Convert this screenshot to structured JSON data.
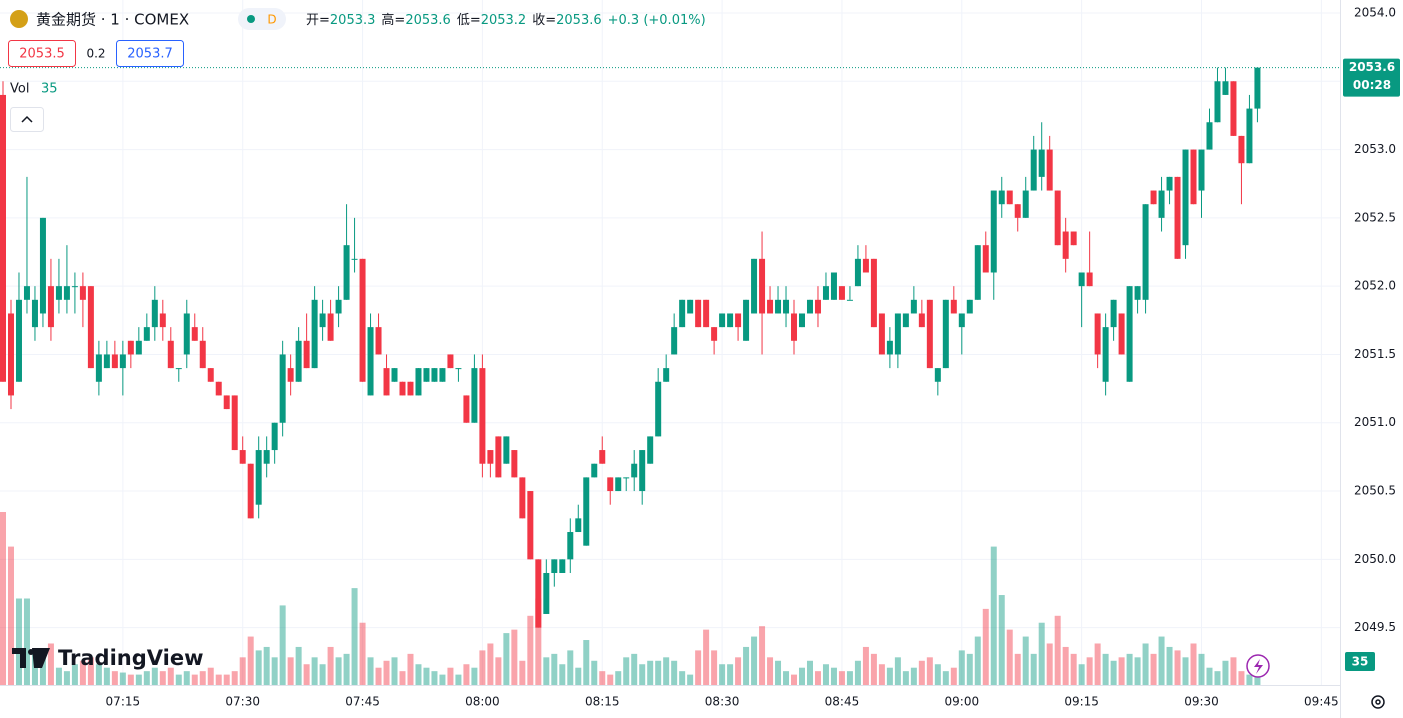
{
  "chart_data": {
    "type": "candlestick",
    "title": "黄金期货 · 1 · COMEX",
    "interval_badge": "D",
    "legend_labels": [
      "开=",
      "高=",
      "低=",
      "收="
    ],
    "change_text": "+0.3 (+0.01%)",
    "bid": 2053.5,
    "spread": 0.2,
    "ask": 2053.7,
    "volume_label": "Vol",
    "countdown": "00:28",
    "watermark": "TradingView",
    "up_color": "#089981",
    "down_color": "#f23645",
    "grid": true,
    "ylim": [
      2049.08,
      2054.095
    ],
    "yticks": [
      2049.5,
      {
        "value": 2050.0,
        "label": "2050.0"
      },
      2050.5,
      {
        "value": 2051.0,
        "label": "2051.0"
      },
      2051.5,
      {
        "value": 2052.0,
        "label": "2052.0"
      },
      2052.5,
      {
        "value": 2053.0,
        "label": "2053.0"
      },
      2053.5,
      {
        "value": 2054.0,
        "label": "2054.0"
      }
    ],
    "xticks": [
      "07:15",
      "07:30",
      "07:45",
      "08:00",
      "08:15",
      "08:30",
      "08:45",
      "09:00",
      "09:15",
      "09:30",
      "09:45"
    ],
    "x": [
      "07:00",
      "07:01",
      "07:02",
      "07:03",
      "07:04",
      "07:05",
      "07:06",
      "07:07",
      "07:08",
      "07:09",
      "07:10",
      "07:11",
      "07:12",
      "07:13",
      "07:14",
      "07:15",
      "07:16",
      "07:17",
      "07:18",
      "07:19",
      "07:20",
      "07:21",
      "07:22",
      "07:23",
      "07:24",
      "07:25",
      "07:26",
      "07:27",
      "07:28",
      "07:29",
      "07:30",
      "07:31",
      "07:32",
      "07:33",
      "07:34",
      "07:35",
      "07:36",
      "07:37",
      "07:38",
      "07:39",
      "07:40",
      "07:41",
      "07:42",
      "07:43",
      "07:44",
      "07:45",
      "07:46",
      "07:47",
      "07:48",
      "07:49",
      "07:50",
      "07:51",
      "07:52",
      "07:53",
      "07:54",
      "07:55",
      "07:56",
      "07:57",
      "07:58",
      "07:59",
      "08:00",
      "08:01",
      "08:02",
      "08:03",
      "08:04",
      "08:05",
      "08:06",
      "08:07",
      "08:08",
      "08:09",
      "08:10",
      "08:11",
      "08:12",
      "08:13",
      "08:14",
      "08:15",
      "08:16",
      "08:17",
      "08:18",
      "08:19",
      "08:20",
      "08:21",
      "08:22",
      "08:23",
      "08:24",
      "08:25",
      "08:26",
      "08:27",
      "08:28",
      "08:29",
      "08:30",
      "08:31",
      "08:32",
      "08:33",
      "08:34",
      "08:35",
      "08:36",
      "08:37",
      "08:38",
      "08:39",
      "08:40",
      "08:41",
      "08:42",
      "08:43",
      "08:44",
      "08:45",
      "08:46",
      "08:47",
      "08:48",
      "08:49",
      "08:50",
      "08:51",
      "08:52",
      "08:53",
      "08:54",
      "08:55",
      "08:56",
      "08:57",
      "08:58",
      "08:59",
      "09:00",
      "09:01",
      "09:02",
      "09:03",
      "09:04",
      "09:05",
      "09:06",
      "09:07",
      "09:08",
      "09:09",
      "09:10",
      "09:11",
      "09:12",
      "09:13",
      "09:14",
      "09:15",
      "09:16",
      "09:17",
      "09:18",
      "09:19",
      "09:20",
      "09:21",
      "09:22",
      "09:23",
      "09:24",
      "09:25",
      "09:26",
      "09:27",
      "09:28",
      "09:29",
      "09:30",
      "09:31",
      "09:32",
      "09:33",
      "09:34",
      "09:35",
      "09:36",
      "09:37"
    ],
    "ohlc": [
      [
        2053.4,
        2053.5,
        2051.3,
        2051.3
      ],
      [
        2051.8,
        2051.9,
        2051.1,
        2051.2
      ],
      [
        2051.3,
        2052.1,
        2051.3,
        2051.9
      ],
      [
        2051.9,
        2052.8,
        2051.8,
        2052.0
      ],
      [
        2051.7,
        2052.0,
        2051.6,
        2051.9
      ],
      [
        2051.8,
        2052.5,
        2051.7,
        2052.5
      ],
      [
        2052.0,
        2052.2,
        2051.6,
        2051.7
      ],
      [
        2051.9,
        2052.2,
        2051.8,
        2052.0
      ],
      [
        2051.9,
        2052.3,
        2051.8,
        2052.0
      ],
      [
        2052.0,
        2052.1,
        2051.8,
        2052.0
      ],
      [
        2052.0,
        2052.1,
        2051.7,
        2051.9
      ],
      [
        2052.0,
        2052.0,
        2051.4,
        2051.4
      ],
      [
        2051.3,
        2051.6,
        2051.2,
        2051.5
      ],
      [
        2051.4,
        2051.6,
        2051.4,
        2051.5
      ],
      [
        2051.5,
        2051.6,
        2051.4,
        2051.4
      ],
      [
        2051.4,
        2051.6,
        2051.2,
        2051.5
      ],
      [
        2051.6,
        2051.6,
        2051.4,
        2051.5
      ],
      [
        2051.5,
        2051.7,
        2051.5,
        2051.6
      ],
      [
        2051.6,
        2051.8,
        2051.6,
        2051.7
      ],
      [
        2051.7,
        2052.0,
        2051.6,
        2051.9
      ],
      [
        2051.8,
        2051.9,
        2051.6,
        2051.7
      ],
      [
        2051.6,
        2051.7,
        2051.4,
        2051.4
      ],
      [
        2051.4,
        2051.4,
        2051.3,
        2051.4
      ],
      [
        2051.5,
        2051.9,
        2051.4,
        2051.8
      ],
      [
        2051.7,
        2051.8,
        2051.6,
        2051.6
      ],
      [
        2051.6,
        2051.7,
        2051.4,
        2051.4
      ],
      [
        2051.4,
        2051.4,
        2051.3,
        2051.3
      ],
      [
        2051.3,
        2051.3,
        2051.2,
        2051.2
      ],
      [
        2051.2,
        2051.2,
        2051.1,
        2051.1
      ],
      [
        2051.2,
        2051.2,
        2050.8,
        2050.8
      ],
      [
        2050.8,
        2050.9,
        2050.7,
        2050.7
      ],
      [
        2050.7,
        2050.7,
        2050.3,
        2050.3
      ],
      [
        2050.4,
        2050.9,
        2050.3,
        2050.8
      ],
      [
        2050.7,
        2050.9,
        2050.6,
        2050.8
      ],
      [
        2050.8,
        2051.0,
        2050.7,
        2051.0
      ],
      [
        2051.0,
        2051.6,
        2050.9,
        2051.5
      ],
      [
        2051.4,
        2051.5,
        2051.2,
        2051.3
      ],
      [
        2051.3,
        2051.7,
        2051.3,
        2051.6
      ],
      [
        2051.6,
        2051.8,
        2051.4,
        2051.4
      ],
      [
        2051.4,
        2052.0,
        2051.4,
        2051.9
      ],
      [
        2051.7,
        2051.9,
        2051.6,
        2051.8
      ],
      [
        2051.8,
        2051.9,
        2051.6,
        2051.6
      ],
      [
        2051.8,
        2052.0,
        2051.7,
        2051.9
      ],
      [
        2051.9,
        2052.6,
        2051.9,
        2052.3
      ],
      [
        2052.2,
        2052.5,
        2052.1,
        2052.2
      ],
      [
        2052.2,
        2052.2,
        2051.3,
        2051.3
      ],
      [
        2051.2,
        2051.8,
        2051.2,
        2051.7
      ],
      [
        2051.7,
        2051.8,
        2051.5,
        2051.5
      ],
      [
        2051.4,
        2051.5,
        2051.2,
        2051.2
      ],
      [
        2051.3,
        2051.4,
        2051.3,
        2051.4
      ],
      [
        2051.3,
        2051.3,
        2051.2,
        2051.2
      ],
      [
        2051.3,
        2051.3,
        2051.2,
        2051.2
      ],
      [
        2051.2,
        2051.4,
        2051.2,
        2051.4
      ],
      [
        2051.3,
        2051.4,
        2051.3,
        2051.4
      ],
      [
        2051.3,
        2051.4,
        2051.3,
        2051.4
      ],
      [
        2051.3,
        2051.4,
        2051.3,
        2051.4
      ],
      [
        2051.5,
        2051.5,
        2051.4,
        2051.4
      ],
      [
        2051.4,
        2051.4,
        2051.3,
        2051.4
      ],
      [
        2051.2,
        2051.2,
        2051.0,
        2051.0
      ],
      [
        2051.0,
        2051.5,
        2051.0,
        2051.4
      ],
      [
        2051.4,
        2051.5,
        2050.6,
        2050.7
      ],
      [
        2050.8,
        2050.8,
        2050.6,
        2050.7
      ],
      [
        2050.9,
        2050.9,
        2050.6,
        2050.6
      ],
      [
        2050.7,
        2050.9,
        2050.7,
        2050.9
      ],
      [
        2050.8,
        2050.8,
        2050.6,
        2050.6
      ],
      [
        2050.6,
        2050.6,
        2050.3,
        2050.3
      ],
      [
        2050.5,
        2050.5,
        2050.0,
        2050.0
      ],
      [
        2050.0,
        2050.0,
        2049.5,
        2049.5
      ],
      [
        2049.6,
        2050.0,
        2049.6,
        2049.9
      ],
      [
        2049.9,
        2050.0,
        2049.8,
        2050.0
      ],
      [
        2049.9,
        2050.0,
        2049.9,
        2050.0
      ],
      [
        2050.0,
        2050.3,
        2049.9,
        2050.2
      ],
      [
        2050.2,
        2050.4,
        2050.2,
        2050.3
      ],
      [
        2050.1,
        2050.6,
        2050.1,
        2050.6
      ],
      [
        2050.6,
        2050.7,
        2050.6,
        2050.7
      ],
      [
        2050.8,
        2050.9,
        2050.7,
        2050.7
      ],
      [
        2050.6,
        2050.6,
        2050.4,
        2050.5
      ],
      [
        2050.5,
        2050.6,
        2050.5,
        2050.6
      ],
      [
        2050.6,
        2050.6,
        2050.5,
        2050.6
      ],
      [
        2050.6,
        2050.8,
        2050.5,
        2050.7
      ],
      [
        2050.5,
        2050.8,
        2050.4,
        2050.8
      ],
      [
        2050.7,
        2050.9,
        2050.7,
        2050.9
      ],
      [
        2050.9,
        2051.4,
        2050.9,
        2051.3
      ],
      [
        2051.3,
        2051.5,
        2051.3,
        2051.4
      ],
      [
        2051.5,
        2051.8,
        2051.5,
        2051.7
      ],
      [
        2051.7,
        2051.9,
        2051.7,
        2051.9
      ],
      [
        2051.8,
        2051.9,
        2051.8,
        2051.9
      ],
      [
        2051.9,
        2051.9,
        2051.7,
        2051.7
      ],
      [
        2051.9,
        2051.9,
        2051.7,
        2051.7
      ],
      [
        2051.7,
        2051.7,
        2051.5,
        2051.6
      ],
      [
        2051.7,
        2051.8,
        2051.7,
        2051.8
      ],
      [
        2051.7,
        2051.8,
        2051.7,
        2051.8
      ],
      [
        2051.8,
        2051.8,
        2051.6,
        2051.7
      ],
      [
        2051.6,
        2051.9,
        2051.6,
        2051.9
      ],
      [
        2051.8,
        2052.2,
        2051.8,
        2052.2
      ],
      [
        2052.2,
        2052.4,
        2051.5,
        2051.8
      ],
      [
        2051.9,
        2052.0,
        2051.8,
        2051.8
      ],
      [
        2051.8,
        2052.0,
        2051.8,
        2051.9
      ],
      [
        2051.8,
        2052.0,
        2051.7,
        2051.9
      ],
      [
        2051.8,
        2051.9,
        2051.5,
        2051.6
      ],
      [
        2051.7,
        2051.8,
        2051.7,
        2051.8
      ],
      [
        2051.8,
        2051.9,
        2051.8,
        2051.9
      ],
      [
        2051.9,
        2052.0,
        2051.7,
        2051.8
      ],
      [
        2051.9,
        2052.1,
        2051.9,
        2052.0
      ],
      [
        2051.9,
        2052.1,
        2051.9,
        2052.1
      ],
      [
        2052.0,
        2052.0,
        2051.9,
        2051.9
      ],
      [
        2051.9,
        2052.0,
        2051.9,
        2051.9
      ],
      [
        2052.0,
        2052.3,
        2052.0,
        2052.2
      ],
      [
        2052.2,
        2052.3,
        2052.1,
        2052.1
      ],
      [
        2052.2,
        2052.2,
        2051.7,
        2051.7
      ],
      [
        2051.8,
        2051.8,
        2051.5,
        2051.5
      ],
      [
        2051.5,
        2051.7,
        2051.4,
        2051.6
      ],
      [
        2051.5,
        2051.8,
        2051.4,
        2051.8
      ],
      [
        2051.7,
        2051.8,
        2051.7,
        2051.8
      ],
      [
        2051.8,
        2052.0,
        2051.8,
        2051.9
      ],
      [
        2051.8,
        2051.9,
        2051.7,
        2051.7
      ],
      [
        2051.9,
        2051.9,
        2051.4,
        2051.4
      ],
      [
        2051.3,
        2051.4,
        2051.2,
        2051.4
      ],
      [
        2051.4,
        2051.9,
        2051.4,
        2051.9
      ],
      [
        2051.9,
        2052.0,
        2051.8,
        2051.8
      ],
      [
        2051.7,
        2051.8,
        2051.5,
        2051.8
      ],
      [
        2051.8,
        2051.9,
        2051.8,
        2051.9
      ],
      [
        2051.9,
        2052.3,
        2051.9,
        2052.3
      ],
      [
        2052.3,
        2052.4,
        2052.1,
        2052.1
      ],
      [
        2052.1,
        2052.7,
        2051.9,
        2052.7
      ],
      [
        2052.6,
        2052.8,
        2052.5,
        2052.7
      ],
      [
        2052.7,
        2052.7,
        2052.6,
        2052.6
      ],
      [
        2052.6,
        2052.6,
        2052.4,
        2052.5
      ],
      [
        2052.5,
        2052.8,
        2052.5,
        2052.7
      ],
      [
        2052.7,
        2053.1,
        2052.7,
        2053.0
      ],
      [
        2052.8,
        2053.2,
        2052.7,
        2053.0
      ],
      [
        2053.0,
        2053.1,
        2052.7,
        2052.7
      ],
      [
        2052.7,
        2052.7,
        2052.3,
        2052.3
      ],
      [
        2052.4,
        2052.5,
        2052.1,
        2052.2
      ],
      [
        2052.4,
        2052.4,
        2052.3,
        2052.3
      ],
      [
        2052.0,
        2052.1,
        2051.7,
        2052.1
      ],
      [
        2052.1,
        2052.4,
        2052.0,
        2052.0
      ],
      [
        2051.8,
        2051.8,
        2051.4,
        2051.5
      ],
      [
        2051.3,
        2051.8,
        2051.2,
        2051.7
      ],
      [
        2051.7,
        2051.9,
        2051.6,
        2051.9
      ],
      [
        2051.8,
        2051.8,
        2051.5,
        2051.5
      ],
      [
        2051.3,
        2052.0,
        2051.3,
        2052.0
      ],
      [
        2051.9,
        2052.0,
        2051.8,
        2052.0
      ],
      [
        2051.9,
        2052.6,
        2051.8,
        2052.6
      ],
      [
        2052.7,
        2052.7,
        2052.6,
        2052.6
      ],
      [
        2052.5,
        2052.8,
        2052.4,
        2052.7
      ],
      [
        2052.7,
        2052.8,
        2052.6,
        2052.8
      ],
      [
        2052.8,
        2052.8,
        2052.2,
        2052.2
      ],
      [
        2052.3,
        2053.0,
        2052.2,
        2053.0
      ],
      [
        2053.0,
        2053.0,
        2052.6,
        2052.6
      ],
      [
        2052.7,
        2053.0,
        2052.5,
        2053.0
      ],
      [
        2053.0,
        2053.3,
        2053.0,
        2053.2
      ],
      [
        2053.2,
        2053.6,
        2053.2,
        2053.5
      ],
      [
        2053.4,
        2053.6,
        2053.4,
        2053.5
      ],
      [
        2053.5,
        2053.5,
        2053.1,
        2053.1
      ],
      [
        2053.1,
        2053.1,
        2052.6,
        2052.9
      ],
      [
        2052.9,
        2053.4,
        2052.9,
        2053.3
      ],
      [
        2053.3,
        2053.6,
        2053.2,
        2053.6
      ]
    ],
    "volume": [
      250,
      200,
      125,
      125,
      45,
      40,
      60,
      25,
      20,
      30,
      35,
      40,
      30,
      25,
      20,
      18,
      15,
      15,
      20,
      25,
      20,
      25,
      15,
      20,
      15,
      20,
      25,
      15,
      15,
      20,
      40,
      70,
      50,
      55,
      40,
      115,
      40,
      55,
      30,
      40,
      30,
      55,
      40,
      45,
      140,
      90,
      40,
      25,
      35,
      40,
      20,
      45,
      30,
      25,
      20,
      15,
      25,
      15,
      30,
      25,
      50,
      60,
      40,
      75,
      80,
      35,
      100,
      125,
      40,
      45,
      30,
      50,
      25,
      65,
      35,
      20,
      15,
      20,
      40,
      45,
      30,
      35,
      35,
      40,
      35,
      20,
      15,
      50,
      80,
      50,
      30,
      30,
      40,
      55,
      70,
      85,
      40,
      35,
      20,
      15,
      25,
      35,
      20,
      30,
      25,
      20,
      20,
      35,
      55,
      45,
      30,
      25,
      40,
      20,
      25,
      35,
      40,
      30,
      20,
      25,
      50,
      45,
      70,
      110,
      200,
      130,
      80,
      45,
      70,
      45,
      90,
      60,
      100,
      55,
      45,
      30,
      40,
      60,
      45,
      35,
      40,
      45,
      40,
      60,
      45,
      70,
      55,
      50,
      40,
      60,
      45,
      25,
      20,
      35,
      40,
      20,
      15,
      35
    ]
  }
}
